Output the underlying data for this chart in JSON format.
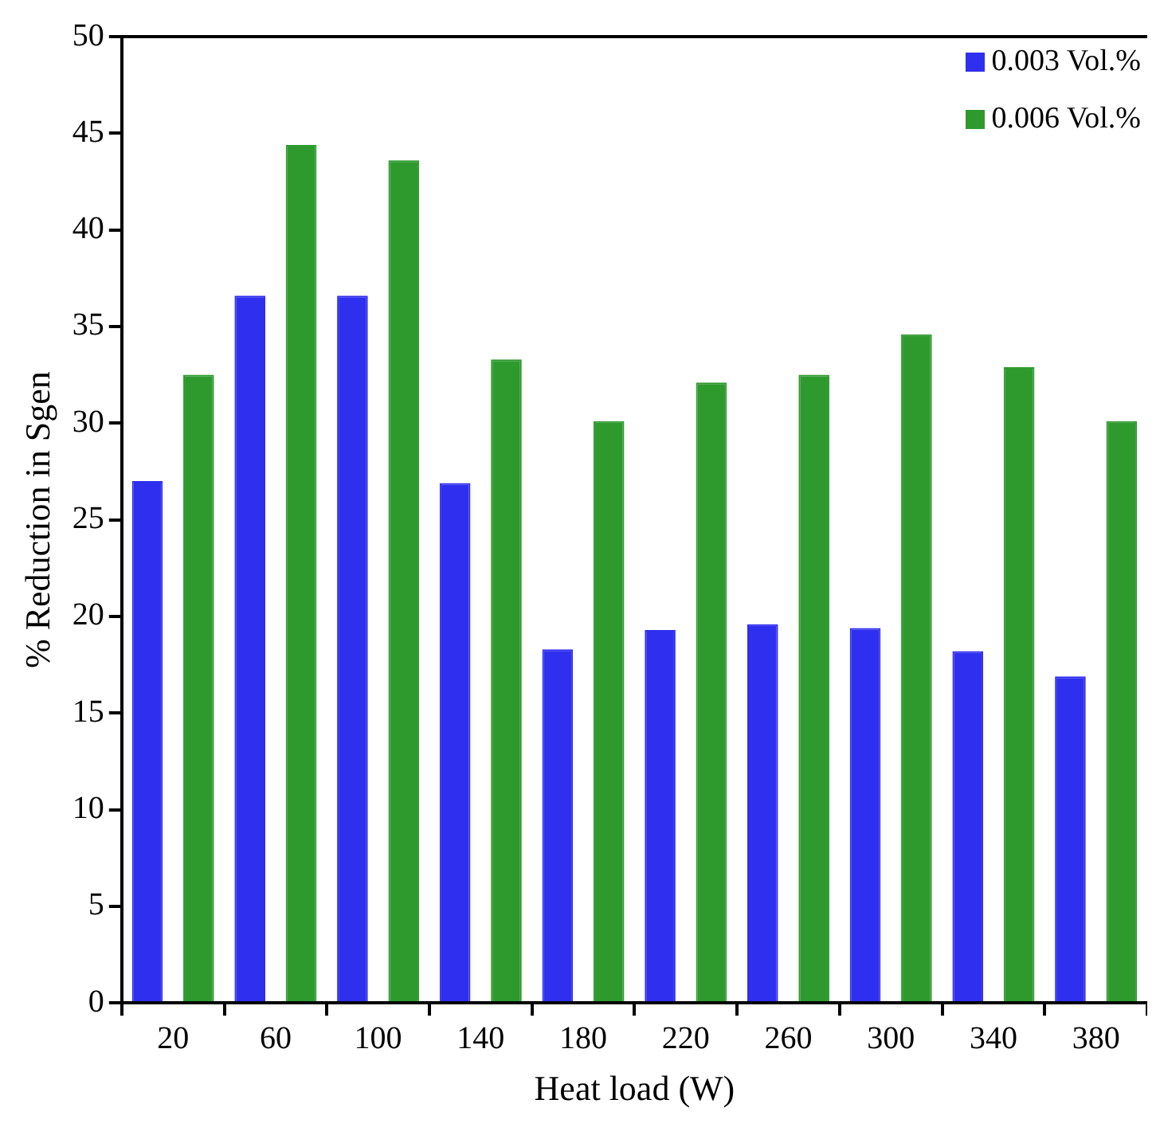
{
  "chart_data": {
    "type": "bar",
    "xlabel": "Heat load (W)",
    "ylabel": "% Reduction in Sgen",
    "categories": [
      "20",
      "60",
      "100",
      "140",
      "180",
      "220",
      "260",
      "300",
      "340",
      "380"
    ],
    "series": [
      {
        "name": "0.003 Vol.%",
        "color": "#2f2ff0",
        "values": [
          27.0,
          36.6,
          36.6,
          26.9,
          18.3,
          19.3,
          19.6,
          19.4,
          18.2,
          16.9
        ]
      },
      {
        "name": "0.006 Vol.%",
        "color": "#2e9a2e",
        "values": [
          32.5,
          44.4,
          43.6,
          33.3,
          30.1,
          32.1,
          32.5,
          34.6,
          32.9,
          30.1
        ]
      }
    ],
    "ylim": [
      0,
      50
    ],
    "yticks": [
      0,
      5,
      10,
      15,
      20,
      25,
      30,
      35,
      40,
      45,
      50
    ],
    "grid": false,
    "legend": "top right"
  }
}
